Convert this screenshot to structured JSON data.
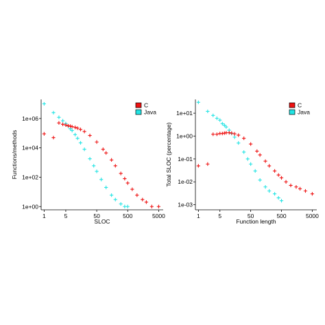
{
  "colors": {
    "c": "#ee1111",
    "java": "#22e4e4"
  },
  "chart_data": [
    {
      "type": "scatter",
      "xscale": "log",
      "yscale": "log",
      "xlabel": "SLOC",
      "ylabel": "Functions/methods",
      "xlim": [
        0.8,
        7000
      ],
      "ylim": [
        0.6,
        20000000
      ],
      "xticks": [
        {
          "value": 1,
          "label": "1"
        },
        {
          "value": 5,
          "label": "5"
        },
        {
          "value": 50,
          "label": "50"
        },
        {
          "value": 500,
          "label": "500"
        },
        {
          "value": 5000,
          "label": "5000"
        }
      ],
      "yticks": [
        {
          "value": 1,
          "label": "1e+00"
        },
        {
          "value": 100,
          "label": "1e+02"
        },
        {
          "value": 10000,
          "label": "1e+04"
        },
        {
          "value": 1000000,
          "label": "1e+06"
        }
      ],
      "legend": {
        "position": "top-right",
        "items": [
          "C",
          "Java"
        ]
      },
      "series": [
        {
          "name": "C",
          "color_key": "c",
          "points": [
            [
              1,
              90000
            ],
            [
              2,
              50000
            ],
            [
              3,
              500000
            ],
            [
              4,
              400000
            ],
            [
              5,
              360000
            ],
            [
              6,
              320000
            ],
            [
              7,
              300000
            ],
            [
              8,
              280000
            ],
            [
              10,
              250000
            ],
            [
              12,
              220000
            ],
            [
              15,
              180000
            ],
            [
              20,
              130000
            ],
            [
              30,
              70000
            ],
            [
              50,
              25000
            ],
            [
              80,
              8000
            ],
            [
              100,
              4500
            ],
            [
              150,
              1500
            ],
            [
              200,
              600
            ],
            [
              300,
              180
            ],
            [
              400,
              80
            ],
            [
              500,
              40
            ],
            [
              700,
              15
            ],
            [
              1000,
              6
            ],
            [
              1500,
              3
            ],
            [
              2000,
              2
            ],
            [
              3000,
              1
            ],
            [
              5000,
              1
            ]
          ]
        },
        {
          "name": "Java",
          "color_key": "java",
          "points": [
            [
              1,
              10000000
            ],
            [
              2,
              2500000
            ],
            [
              3,
              1200000
            ],
            [
              4,
              700000
            ],
            [
              5,
              450000
            ],
            [
              6,
              300000
            ],
            [
              7,
              200000
            ],
            [
              8,
              150000
            ],
            [
              10,
              80000
            ],
            [
              12,
              45000
            ],
            [
              15,
              22000
            ],
            [
              20,
              8000
            ],
            [
              30,
              1800
            ],
            [
              40,
              600
            ],
            [
              50,
              250
            ],
            [
              70,
              70
            ],
            [
              100,
              20
            ],
            [
              150,
              6
            ],
            [
              200,
              3
            ],
            [
              300,
              1.5
            ],
            [
              400,
              1
            ],
            [
              500,
              1
            ]
          ]
        }
      ]
    },
    {
      "type": "scatter",
      "xscale": "log",
      "yscale": "log",
      "xlabel": "Function length",
      "ylabel": "Total SLOC (percentage)",
      "xlim": [
        0.8,
        7000
      ],
      "ylim": [
        0.0006,
        40
      ],
      "xticks": [
        {
          "value": 1,
          "label": "1"
        },
        {
          "value": 5,
          "label": "5"
        },
        {
          "value": 50,
          "label": "50"
        },
        {
          "value": 500,
          "label": "500"
        },
        {
          "value": 5000,
          "label": "5000"
        }
      ],
      "yticks": [
        {
          "value": 0.001,
          "label": "1e-03"
        },
        {
          "value": 0.01,
          "label": "1e-02"
        },
        {
          "value": 0.1,
          "label": "1e-01"
        },
        {
          "value": 1,
          "label": "1e+00"
        },
        {
          "value": 10,
          "label": "1e+01"
        }
      ],
      "legend": {
        "position": "top-right",
        "items": [
          "C",
          "Java"
        ]
      },
      "series": [
        {
          "name": "C",
          "color_key": "c",
          "points": [
            [
              1,
              0.05
            ],
            [
              2,
              0.06
            ],
            [
              3,
              1.2
            ],
            [
              4,
              1.2
            ],
            [
              5,
              1.3
            ],
            [
              6,
              1.3
            ],
            [
              7,
              1.35
            ],
            [
              8,
              1.4
            ],
            [
              10,
              1.4
            ],
            [
              12,
              1.35
            ],
            [
              15,
              1.25
            ],
            [
              20,
              1.1
            ],
            [
              30,
              0.8
            ],
            [
              50,
              0.45
            ],
            [
              80,
              0.22
            ],
            [
              100,
              0.15
            ],
            [
              150,
              0.08
            ],
            [
              200,
              0.05
            ],
            [
              300,
              0.03
            ],
            [
              400,
              0.02
            ],
            [
              500,
              0.015
            ],
            [
              700,
              0.01
            ],
            [
              1000,
              0.007
            ],
            [
              1500,
              0.006
            ],
            [
              2000,
              0.005
            ],
            [
              3000,
              0.004
            ],
            [
              5000,
              0.003
            ]
          ]
        },
        {
          "name": "Java",
          "color_key": "java",
          "points": [
            [
              1,
              30
            ],
            [
              2,
              12
            ],
            [
              3,
              8
            ],
            [
              4,
              6
            ],
            [
              5,
              5
            ],
            [
              6,
              3.5
            ],
            [
              7,
              3
            ],
            [
              8,
              2.5
            ],
            [
              10,
              1.8
            ],
            [
              12,
              1.3
            ],
            [
              15,
              0.9
            ],
            [
              20,
              0.5
            ],
            [
              30,
              0.2
            ],
            [
              40,
              0.1
            ],
            [
              50,
              0.06
            ],
            [
              70,
              0.03
            ],
            [
              100,
              0.012
            ],
            [
              150,
              0.006
            ],
            [
              200,
              0.004
            ],
            [
              300,
              0.003
            ],
            [
              400,
              0.002
            ],
            [
              500,
              0.0015
            ]
          ]
        }
      ]
    }
  ]
}
